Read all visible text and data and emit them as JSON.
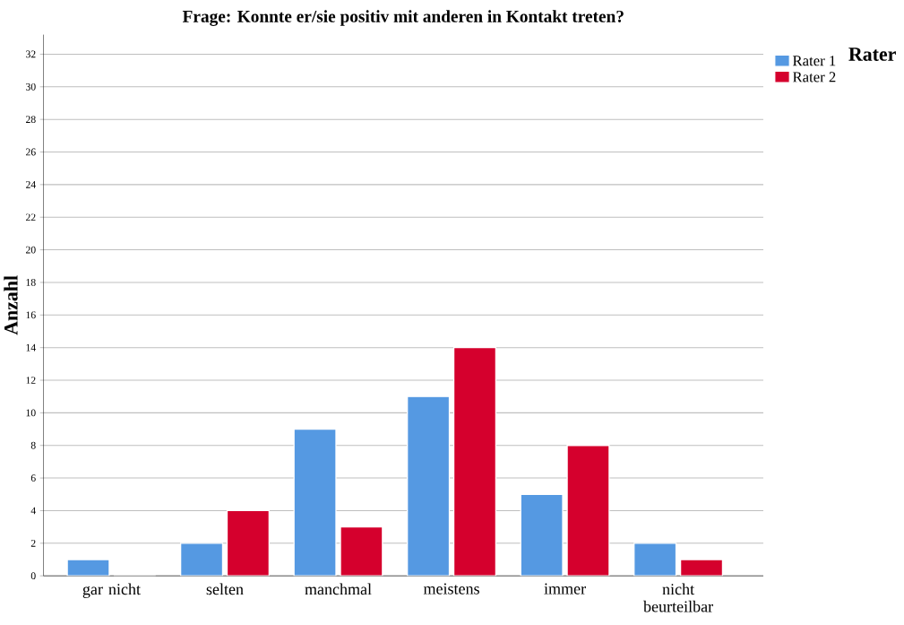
{
  "chart_data": {
    "type": "bar",
    "title": "Frage: Konnte er/sie positiv mit anderen in Kontakt treten?",
    "ylabel": "Anzahl",
    "legend_title": "Rater",
    "categories": [
      "gar nicht",
      "selten",
      "manchmal",
      "meistens",
      "immer",
      "nicht beurteilbar"
    ],
    "series": [
      {
        "name": "Rater 1",
        "color": "#5599e2",
        "values": [
          1,
          2,
          9,
          11,
          5,
          2
        ]
      },
      {
        "name": "Rater 2",
        "color": "#d5002d",
        "values": [
          0,
          4,
          3,
          14,
          8,
          1
        ]
      }
    ],
    "ylim": [
      0,
      33.2
    ],
    "yticks": [
      0,
      2,
      4,
      6,
      8,
      10,
      12,
      14,
      16,
      18,
      20,
      22,
      24,
      26,
      28,
      30,
      32
    ],
    "grid": "y",
    "legend": "top right"
  }
}
